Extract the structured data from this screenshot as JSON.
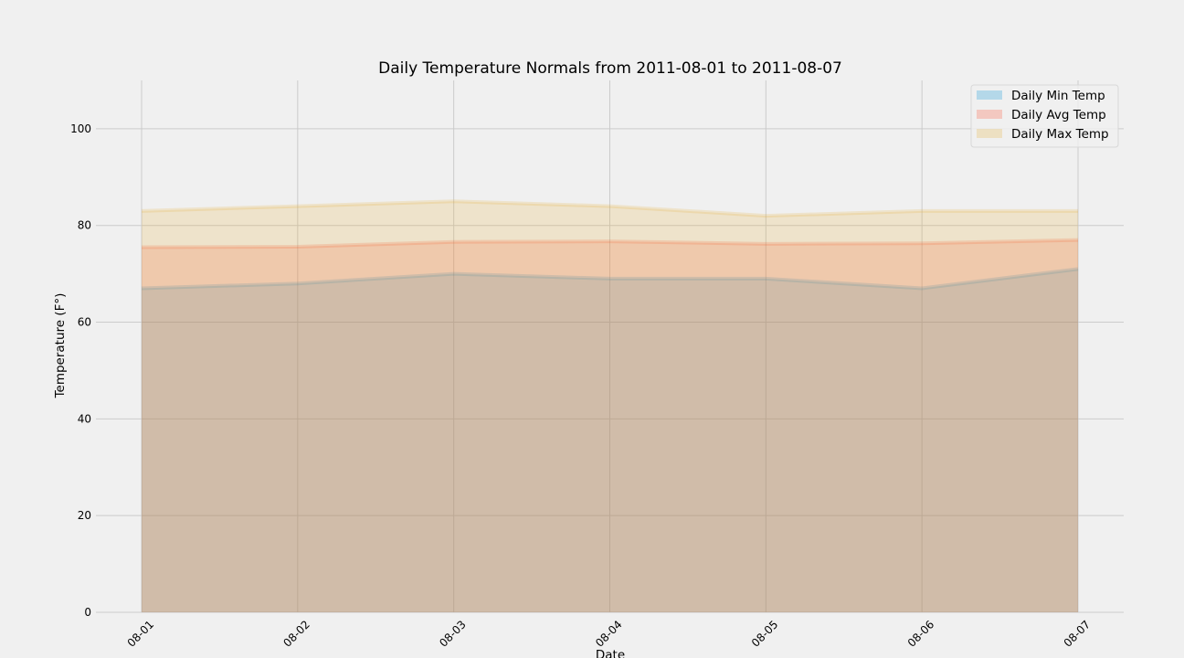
{
  "chart_data": {
    "type": "area",
    "title": "Daily Temperature Normals from 2011-08-01 to 2011-08-07",
    "xlabel": "Date",
    "ylabel": "Temperature (F°)",
    "categories": [
      "08-01",
      "08-02",
      "08-03",
      "08-04",
      "08-05",
      "08-06",
      "08-07"
    ],
    "ylim": [
      0,
      110
    ],
    "yticks": [
      0,
      20,
      40,
      60,
      80,
      100
    ],
    "grid": true,
    "legend_position": "top-right",
    "series": [
      {
        "name": "Daily Min Temp",
        "values": [
          67,
          68,
          70,
          69,
          69,
          67,
          71
        ],
        "color": "#008fd5"
      },
      {
        "name": "Daily Avg Temp",
        "values": [
          75.5,
          75.6,
          76.6,
          76.7,
          76.2,
          76.3,
          77.0
        ],
        "color": "#fc4f30"
      },
      {
        "name": "Daily Max Temp",
        "values": [
          83,
          84,
          85,
          84,
          82,
          83,
          83
        ],
        "color": "#e5ae38"
      }
    ]
  }
}
